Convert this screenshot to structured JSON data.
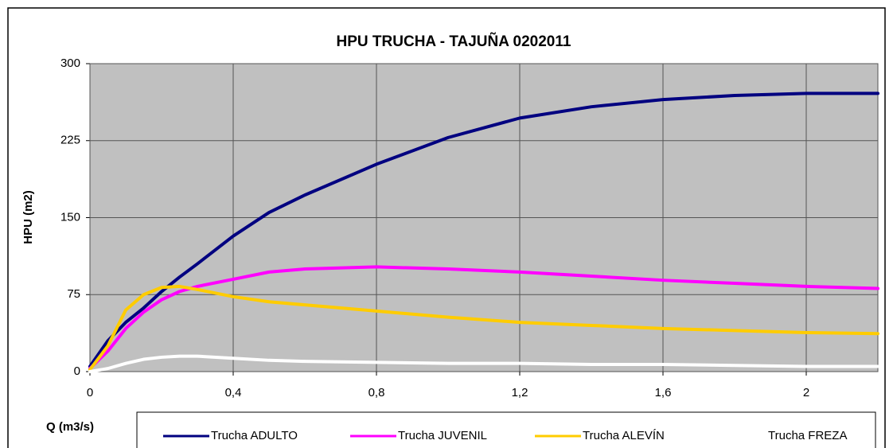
{
  "chart_data": {
    "type": "line",
    "title": "HPU TRUCHA - TAJUÑA 0202011",
    "xlabel": "Q (m3/s)",
    "ylabel": "HPU (m2)",
    "x": [
      0,
      0.05,
      0.1,
      0.15,
      0.2,
      0.25,
      0.3,
      0.4,
      0.5,
      0.6,
      0.8,
      1.0,
      1.2,
      1.4,
      1.6,
      1.8,
      2.0,
      2.2
    ],
    "series": [
      {
        "name": "Trucha ADULTO",
        "color": "#000080",
        "values": [
          5,
          30,
          48,
          62,
          78,
          92,
          105,
          132,
          155,
          172,
          202,
          228,
          247,
          258,
          265,
          269,
          271,
          271
        ]
      },
      {
        "name": "Trucha JUVENIL",
        "color": "#ff00ff",
        "values": [
          3,
          20,
          42,
          58,
          70,
          78,
          83,
          90,
          97,
          100,
          102,
          100,
          97,
          93,
          89,
          86,
          83,
          81
        ]
      },
      {
        "name": "Trucha ALEVÍN",
        "color": "#ffcc00",
        "values": [
          2,
          25,
          60,
          75,
          82,
          83,
          80,
          73,
          68,
          65,
          59,
          53,
          48,
          45,
          42,
          40,
          38,
          37
        ]
      },
      {
        "name": "Trucha FREZA",
        "color": "#ffffff",
        "values": [
          0,
          3,
          8,
          12,
          14,
          15,
          15,
          13,
          11,
          10,
          9,
          8,
          8,
          7,
          7,
          6,
          5,
          5
        ]
      }
    ],
    "xlim": [
      0,
      2.2
    ],
    "xticks": [
      0,
      {
        "value": 0.4,
        "label": "0,4"
      },
      {
        "value": 0.8,
        "label": "0,8"
      },
      {
        "value": 1.2,
        "label": "1,2"
      },
      {
        "value": 1.6,
        "label": "1,6"
      },
      2
    ],
    "ylim": [
      0,
      300
    ],
    "yticks": [
      0,
      75,
      150,
      225,
      300
    ],
    "grid": true,
    "plot_background": "#c0c0c0"
  }
}
